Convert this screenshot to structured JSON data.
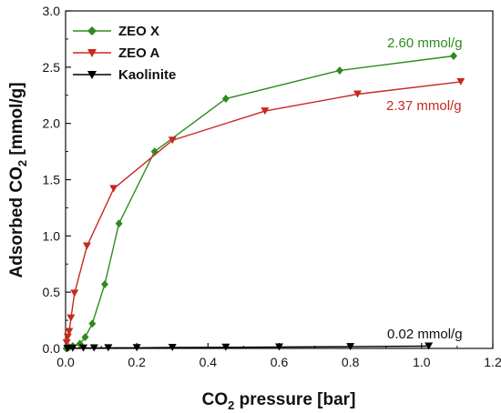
{
  "chart_data": {
    "type": "line",
    "xlabel_main": "CO",
    "xlabel_sub": "2",
    "xlabel_rest": " pressure [bar]",
    "ylabel_main": "Adsorbed CO",
    "ylabel_sub": "2",
    "ylabel_rest": " [mmol/g]",
    "xlim": [
      0.0,
      1.2
    ],
    "ylim": [
      0.0,
      3.0
    ],
    "xticks": [
      "0.0",
      "0.2",
      "0.4",
      "0.6",
      "0.8",
      "1.0",
      "1.2"
    ],
    "yticks": [
      "0.0",
      "0.5",
      "1.0",
      "1.5",
      "2.0",
      "2.5",
      "3.0"
    ],
    "legend_position": "top-left",
    "series": [
      {
        "name": "ZEO X",
        "color": "#2e8b1e",
        "marker": "diamond",
        "x": [
          0.002,
          0.005,
          0.01,
          0.02,
          0.04,
          0.055,
          0.075,
          0.11,
          0.15,
          0.25,
          0.45,
          0.77,
          1.09
        ],
        "y": [
          0.0,
          0.005,
          0.01,
          0.02,
          0.04,
          0.1,
          0.22,
          0.57,
          1.11,
          1.75,
          2.22,
          2.47,
          2.6
        ]
      },
      {
        "name": "ZEO A",
        "color": "#c8281e",
        "marker": "triangle-down",
        "x": [
          0.003,
          0.006,
          0.01,
          0.015,
          0.025,
          0.06,
          0.135,
          0.3,
          0.56,
          0.82,
          1.11
        ],
        "y": [
          0.05,
          0.1,
          0.15,
          0.27,
          0.49,
          0.91,
          1.42,
          1.85,
          2.11,
          2.26,
          2.37
        ]
      },
      {
        "name": "Kaolinite",
        "color": "#000000",
        "marker": "triangle-down",
        "x": [
          0.005,
          0.02,
          0.05,
          0.08,
          0.12,
          0.2,
          0.3,
          0.45,
          0.6,
          0.8,
          1.02
        ],
        "y": [
          0.0,
          0.002,
          0.003,
          0.004,
          0.005,
          0.006,
          0.008,
          0.01,
          0.012,
          0.015,
          0.02
        ]
      }
    ],
    "annotations": [
      {
        "text": "2.60 mmol/g",
        "color": "#2e8b1e"
      },
      {
        "text": "2.37 mmol/g",
        "color": "#c8281e"
      },
      {
        "text": "0.02 mmol/g",
        "color": "#111111"
      }
    ]
  }
}
